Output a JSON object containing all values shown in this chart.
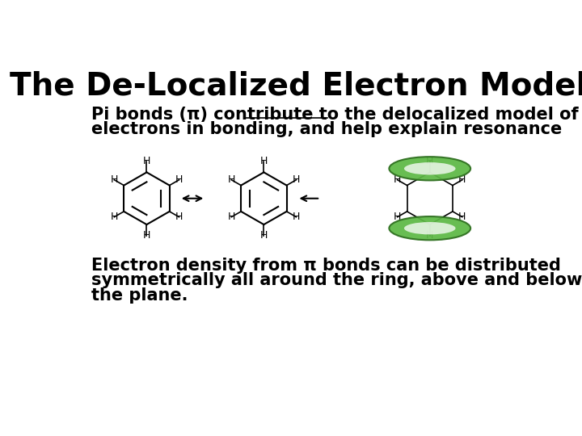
{
  "title": "The De-Localized Electron Model",
  "subtitle_part1": "Pi bonds (π) contribute to the ",
  "subtitle_underline": "delocalized model",
  "subtitle_part2": " of",
  "subtitle_line2": "electrons in bonding, and help explain resonance",
  "bottom_text_line1": "Electron density from π bonds can be distributed",
  "bottom_text_line2": "symmetrically all around the ring, above and below",
  "bottom_text_line3": "the plane.",
  "bg_color": "#ffffff",
  "title_color": "#000000",
  "text_color": "#000000",
  "title_fontsize": 28,
  "body_fontsize": 15,
  "torus_color": "#5db845",
  "torus_edge_color": "#2d6e1e"
}
